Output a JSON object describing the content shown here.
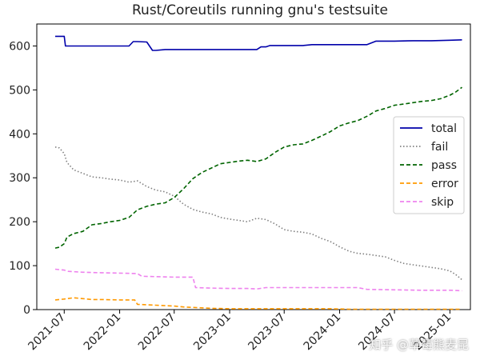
{
  "chart_data": {
    "type": "line",
    "title": "Rust/Coreutils running gnu's testsuite",
    "xlabel": "",
    "ylabel": "",
    "ylim": [
      0,
      650
    ],
    "x_ticks": [
      "2021-07",
      "2022-01",
      "2022-07",
      "2023-01",
      "2023-07",
      "2024-01",
      "2024-07",
      "2025-01"
    ],
    "y_ticks": [
      0,
      100,
      200,
      300,
      400,
      500,
      600
    ],
    "legend_position": "center-right",
    "grid": false,
    "series": [
      {
        "name": "total",
        "color": "#0000aa",
        "style": "solid",
        "points": [
          [
            "2021-06-01",
            622
          ],
          [
            "2021-07-01",
            622
          ],
          [
            "2021-07-05",
            600
          ],
          [
            "2021-08-01",
            600
          ],
          [
            "2021-09-01",
            600
          ],
          [
            "2021-10-01",
            600
          ],
          [
            "2021-11-01",
            600
          ],
          [
            "2021-12-01",
            600
          ],
          [
            "2022-01-01",
            600
          ],
          [
            "2022-02-01",
            600
          ],
          [
            "2022-02-15",
            610
          ],
          [
            "2022-03-01",
            610
          ],
          [
            "2022-04-01",
            609
          ],
          [
            "2022-04-20",
            590
          ],
          [
            "2022-05-01",
            590
          ],
          [
            "2022-06-01",
            592
          ],
          [
            "2022-08-01",
            592
          ],
          [
            "2022-10-01",
            592
          ],
          [
            "2022-12-01",
            592
          ],
          [
            "2023-02-01",
            592
          ],
          [
            "2023-04-01",
            592
          ],
          [
            "2023-04-15",
            598
          ],
          [
            "2023-05-01",
            598
          ],
          [
            "2023-05-15",
            601
          ],
          [
            "2023-07-01",
            601
          ],
          [
            "2023-09-01",
            601
          ],
          [
            "2023-10-01",
            603
          ],
          [
            "2023-12-01",
            603
          ],
          [
            "2024-02-01",
            603
          ],
          [
            "2024-04-01",
            603
          ],
          [
            "2024-05-01",
            611
          ],
          [
            "2024-07-01",
            611
          ],
          [
            "2024-09-01",
            612
          ],
          [
            "2024-11-01",
            612
          ],
          [
            "2025-01-01",
            613
          ],
          [
            "2025-02-10",
            614
          ]
        ]
      },
      {
        "name": "fail",
        "color": "#808080",
        "style": "dotted",
        "points": [
          [
            "2021-06-01",
            370
          ],
          [
            "2021-06-15",
            368
          ],
          [
            "2021-07-01",
            355
          ],
          [
            "2021-07-10",
            335
          ],
          [
            "2021-08-01",
            318
          ],
          [
            "2021-09-01",
            310
          ],
          [
            "2021-10-01",
            302
          ],
          [
            "2021-11-01",
            300
          ],
          [
            "2021-12-01",
            297
          ],
          [
            "2022-01-01",
            295
          ],
          [
            "2022-02-01",
            290
          ],
          [
            "2022-03-01",
            293
          ],
          [
            "2022-04-01",
            280
          ],
          [
            "2022-05-01",
            272
          ],
          [
            "2022-06-01",
            268
          ],
          [
            "2022-07-01",
            258
          ],
          [
            "2022-08-01",
            240
          ],
          [
            "2022-09-01",
            228
          ],
          [
            "2022-10-01",
            222
          ],
          [
            "2022-11-01",
            218
          ],
          [
            "2022-12-01",
            210
          ],
          [
            "2023-01-01",
            206
          ],
          [
            "2023-02-01",
            203
          ],
          [
            "2023-03-01",
            200
          ],
          [
            "2023-04-01",
            208
          ],
          [
            "2023-05-01",
            205
          ],
          [
            "2023-06-01",
            195
          ],
          [
            "2023-07-01",
            182
          ],
          [
            "2023-08-01",
            178
          ],
          [
            "2023-09-01",
            176
          ],
          [
            "2023-10-01",
            172
          ],
          [
            "2023-11-01",
            162
          ],
          [
            "2023-12-01",
            155
          ],
          [
            "2024-01-01",
            143
          ],
          [
            "2024-02-01",
            133
          ],
          [
            "2024-03-01",
            128
          ],
          [
            "2024-04-01",
            126
          ],
          [
            "2024-05-01",
            123
          ],
          [
            "2024-06-01",
            120
          ],
          [
            "2024-07-01",
            112
          ],
          [
            "2024-08-01",
            105
          ],
          [
            "2024-09-01",
            102
          ],
          [
            "2024-10-01",
            99
          ],
          [
            "2024-11-01",
            96
          ],
          [
            "2024-12-01",
            93
          ],
          [
            "2025-01-01",
            88
          ],
          [
            "2025-01-20",
            80
          ],
          [
            "2025-02-10",
            68
          ]
        ]
      },
      {
        "name": "pass",
        "color": "#006400",
        "style": "dashed",
        "points": [
          [
            "2021-06-01",
            140
          ],
          [
            "2021-06-15",
            142
          ],
          [
            "2021-07-01",
            150
          ],
          [
            "2021-07-10",
            165
          ],
          [
            "2021-08-01",
            173
          ],
          [
            "2021-09-01",
            178
          ],
          [
            "2021-10-01",
            193
          ],
          [
            "2021-11-01",
            196
          ],
          [
            "2021-12-01",
            200
          ],
          [
            "2022-01-01",
            203
          ],
          [
            "2022-02-01",
            210
          ],
          [
            "2022-03-01",
            227
          ],
          [
            "2022-04-01",
            235
          ],
          [
            "2022-05-01",
            240
          ],
          [
            "2022-06-01",
            243
          ],
          [
            "2022-07-01",
            255
          ],
          [
            "2022-08-01",
            275
          ],
          [
            "2022-09-01",
            298
          ],
          [
            "2022-10-01",
            312
          ],
          [
            "2022-11-01",
            322
          ],
          [
            "2022-12-01",
            332
          ],
          [
            "2023-01-01",
            335
          ],
          [
            "2023-02-01",
            338
          ],
          [
            "2023-03-01",
            340
          ],
          [
            "2023-04-01",
            337
          ],
          [
            "2023-05-01",
            343
          ],
          [
            "2023-06-01",
            358
          ],
          [
            "2023-07-01",
            370
          ],
          [
            "2023-08-01",
            375
          ],
          [
            "2023-09-01",
            377
          ],
          [
            "2023-10-01",
            385
          ],
          [
            "2023-11-01",
            395
          ],
          [
            "2023-12-01",
            405
          ],
          [
            "2024-01-01",
            418
          ],
          [
            "2024-02-01",
            425
          ],
          [
            "2024-03-01",
            430
          ],
          [
            "2024-04-01",
            440
          ],
          [
            "2024-05-01",
            452
          ],
          [
            "2024-06-01",
            458
          ],
          [
            "2024-07-01",
            465
          ],
          [
            "2024-08-01",
            468
          ],
          [
            "2024-09-01",
            471
          ],
          [
            "2024-10-01",
            474
          ],
          [
            "2024-11-01",
            476
          ],
          [
            "2024-12-01",
            480
          ],
          [
            "2025-01-01",
            488
          ],
          [
            "2025-01-20",
            495
          ],
          [
            "2025-02-10",
            506
          ]
        ]
      },
      {
        "name": "error",
        "color": "#ff9900",
        "style": "dashed",
        "points": [
          [
            "2021-06-01",
            22
          ],
          [
            "2021-07-01",
            24
          ],
          [
            "2021-08-01",
            27
          ],
          [
            "2021-09-01",
            25
          ],
          [
            "2021-10-01",
            23
          ],
          [
            "2021-11-01",
            23
          ],
          [
            "2022-01-01",
            22
          ],
          [
            "2022-02-20",
            22
          ],
          [
            "2022-03-01",
            12
          ],
          [
            "2022-05-01",
            10
          ],
          [
            "2022-07-01",
            8
          ],
          [
            "2022-08-01",
            6
          ],
          [
            "2022-09-01",
            5
          ],
          [
            "2022-11-01",
            3
          ],
          [
            "2023-01-01",
            2
          ],
          [
            "2023-06-01",
            2
          ],
          [
            "2023-12-01",
            2
          ],
          [
            "2024-02-01",
            1
          ],
          [
            "2024-08-01",
            1
          ],
          [
            "2025-02-10",
            1
          ]
        ]
      },
      {
        "name": "skip",
        "color": "#ee82ee",
        "style": "dashed",
        "points": [
          [
            "2021-06-01",
            92
          ],
          [
            "2021-07-01",
            90
          ],
          [
            "2021-07-15",
            87
          ],
          [
            "2021-09-01",
            85
          ],
          [
            "2021-11-01",
            84
          ],
          [
            "2022-01-01",
            83
          ],
          [
            "2022-03-01",
            82
          ],
          [
            "2022-03-15",
            76
          ],
          [
            "2022-05-01",
            75
          ],
          [
            "2022-07-01",
            74
          ],
          [
            "2022-09-01",
            74
          ],
          [
            "2022-09-10",
            50
          ],
          [
            "2022-11-01",
            49
          ],
          [
            "2023-01-01",
            48
          ],
          [
            "2023-03-01",
            48
          ],
          [
            "2023-04-01",
            47
          ],
          [
            "2023-05-01",
            50
          ],
          [
            "2023-07-01",
            50
          ],
          [
            "2023-10-01",
            50
          ],
          [
            "2024-01-01",
            50
          ],
          [
            "2024-03-01",
            50
          ],
          [
            "2024-04-01",
            46
          ],
          [
            "2024-07-01",
            45
          ],
          [
            "2024-10-01",
            44
          ],
          [
            "2025-01-01",
            44
          ],
          [
            "2025-02-10",
            43
          ]
        ]
      }
    ]
  },
  "watermark": "知乎 @草莓熊麦昆"
}
